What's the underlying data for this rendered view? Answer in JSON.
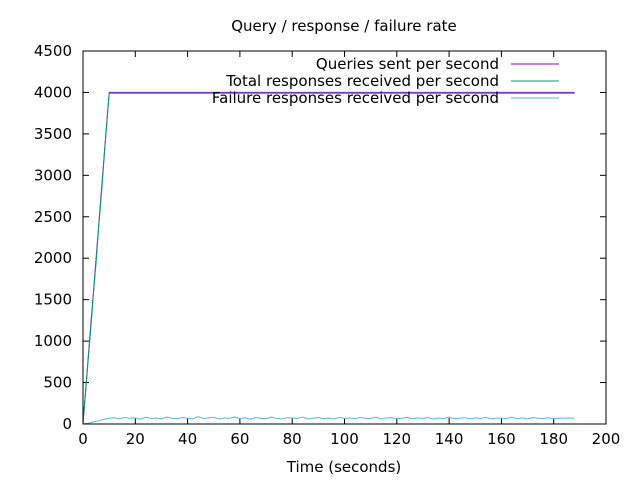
{
  "chart_data": {
    "type": "line",
    "title": "Query / response / failure rate",
    "xlabel": "Time (seconds)",
    "ylabel": "",
    "xlim": [
      0,
      200
    ],
    "ylim": [
      0,
      4500
    ],
    "xticks": [
      0,
      20,
      40,
      60,
      80,
      100,
      120,
      140,
      160,
      180,
      200
    ],
    "yticks": [
      0,
      500,
      1000,
      1500,
      2000,
      2500,
      3000,
      3500,
      4000,
      4500
    ],
    "grid": false,
    "legend_position": "top-right",
    "series": [
      {
        "name": "Queries sent per second",
        "color": "#9400d3",
        "x": [
          0,
          1,
          2,
          3,
          4,
          5,
          6,
          7,
          8,
          9,
          10,
          188
        ],
        "y": [
          0,
          400,
          800,
          1200,
          1600,
          2000,
          2400,
          2800,
          3200,
          3600,
          4000,
          4000
        ]
      },
      {
        "name": "Total responses received per second",
        "color": "#009e73",
        "x": [
          0,
          1,
          2,
          3,
          4,
          5,
          6,
          7,
          8,
          9,
          10,
          188
        ],
        "y": [
          30,
          380,
          780,
          1150,
          1580,
          1950,
          2380,
          2750,
          3180,
          3580,
          3990,
          3990
        ]
      },
      {
        "name": "Failure responses received per second",
        "color": "#56b4e9",
        "x": [
          0,
          2,
          4,
          6,
          8,
          10,
          12,
          14,
          16,
          18,
          20,
          22,
          24,
          26,
          28,
          30,
          32,
          34,
          36,
          38,
          40,
          42,
          44,
          46,
          48,
          50,
          52,
          54,
          56,
          58,
          60,
          62,
          64,
          66,
          68,
          70,
          72,
          74,
          76,
          78,
          80,
          82,
          84,
          86,
          88,
          90,
          92,
          94,
          96,
          98,
          100,
          102,
          104,
          106,
          108,
          110,
          112,
          114,
          116,
          118,
          120,
          122,
          124,
          126,
          128,
          130,
          132,
          134,
          136,
          138,
          140,
          142,
          144,
          146,
          148,
          150,
          152,
          154,
          156,
          158,
          160,
          162,
          164,
          166,
          168,
          170,
          172,
          174,
          176,
          178,
          180,
          182,
          184,
          186,
          188
        ],
        "y": [
          0,
          10,
          25,
          40,
          55,
          70,
          75,
          62,
          80,
          68,
          74,
          58,
          82,
          66,
          72,
          60,
          85,
          70,
          64,
          78,
          70,
          62,
          88,
          66,
          74,
          80,
          60,
          72,
          68,
          84,
          66,
          74,
          58,
          78,
          70,
          64,
          82,
          68,
          60,
          76,
          72,
          66,
          84,
          62,
          70,
          78,
          64,
          72,
          60,
          80,
          68,
          74,
          62,
          78,
          70,
          66,
          82,
          60,
          72,
          76,
          64,
          70,
          80,
          62,
          74,
          68,
          78,
          60,
          72,
          66,
          84,
          64,
          70,
          76,
          62,
          74,
          68,
          80,
          60,
          72,
          70,
          66,
          82,
          64,
          74,
          62,
          78,
          70,
          66,
          76,
          64,
          72,
          70,
          74,
          68
        ]
      }
    ]
  }
}
